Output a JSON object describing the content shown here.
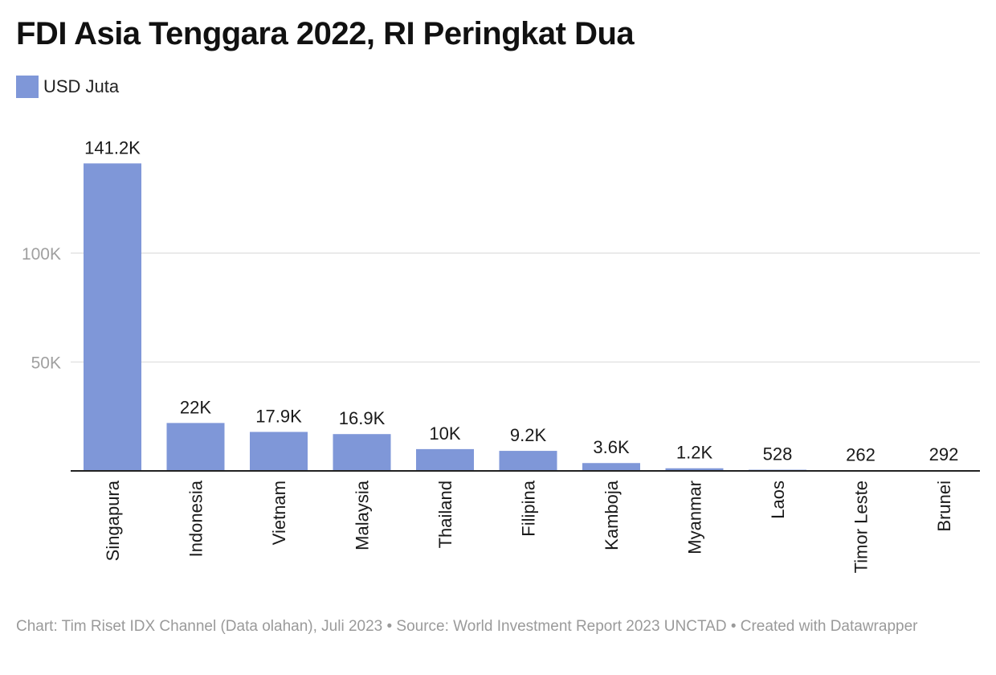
{
  "chart_data": {
    "type": "bar",
    "title": "FDI Asia Tenggara 2022, RI Peringkat Dua",
    "legend": [
      {
        "name": "USD Juta",
        "color": "#7f97d8"
      }
    ],
    "series_name": "USD Juta",
    "categories": [
      "Singapura",
      "Indonesia",
      "Vietnam",
      "Malaysia",
      "Thailand",
      "Filipina",
      "Kamboja",
      "Myanmar",
      "Laos",
      "Timor Leste",
      "Brunei"
    ],
    "values": [
      141200,
      22000,
      17900,
      16900,
      10000,
      9200,
      3600,
      1200,
      528,
      262,
      292
    ],
    "value_labels": [
      "141.2K",
      "22K",
      "17.9K",
      "16.9K",
      "10K",
      "9.2K",
      "3.6K",
      "1.2K",
      "528",
      "262",
      "292"
    ],
    "y_ticks": [
      50000,
      100000
    ],
    "y_tick_labels": [
      "50K",
      "100K"
    ],
    "ylim": [
      0,
      141200
    ],
    "grid": true,
    "xlabel": "",
    "ylabel": ""
  },
  "footer": "Chart: Tim Riset IDX Channel (Data olahan), Juli 2023 • Source: World Investment Report 2023 UNCTAD • Created with Datawrapper",
  "colors": {
    "bar": "#7f97d8",
    "grid": "#e3e3e3",
    "axis": "#222222",
    "tick_label": "#a0a0a0"
  }
}
